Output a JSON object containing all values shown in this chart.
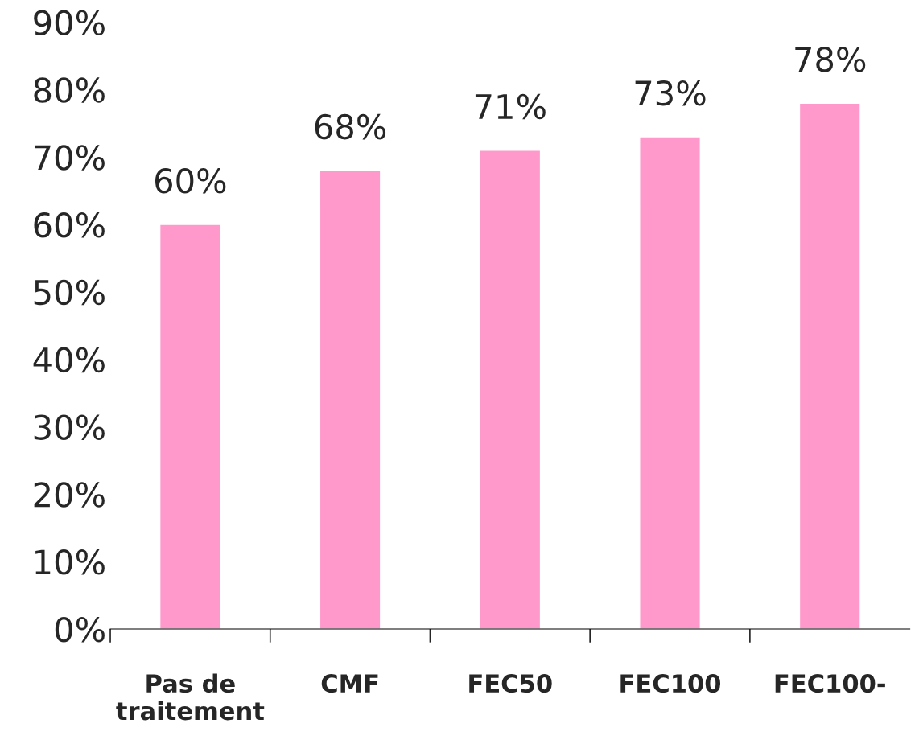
{
  "chart_data": {
    "type": "bar",
    "categories": [
      "Pas de\ntraitement",
      "CMF",
      "FEC50",
      "FEC100",
      "FEC100-"
    ],
    "values": [
      60,
      68,
      71,
      73,
      78
    ],
    "value_labels": [
      "60%",
      "68%",
      "71%",
      "73%",
      "78%"
    ],
    "color": "#ff99cc",
    "ylim": [
      0,
      90
    ],
    "yticks": [
      {
        "value": 0,
        "label": "0%"
      },
      {
        "value": 10,
        "label": "10%"
      },
      {
        "value": 20,
        "label": "20%"
      },
      {
        "value": 30,
        "label": "30%"
      },
      {
        "value": 40,
        "label": "40%"
      },
      {
        "value": 50,
        "label": "50%"
      },
      {
        "value": 60,
        "label": "60%"
      },
      {
        "value": 70,
        "label": "70%"
      },
      {
        "value": 80,
        "label": "80%"
      },
      {
        "value": 90,
        "label": "90%"
      }
    ],
    "grid": false
  }
}
